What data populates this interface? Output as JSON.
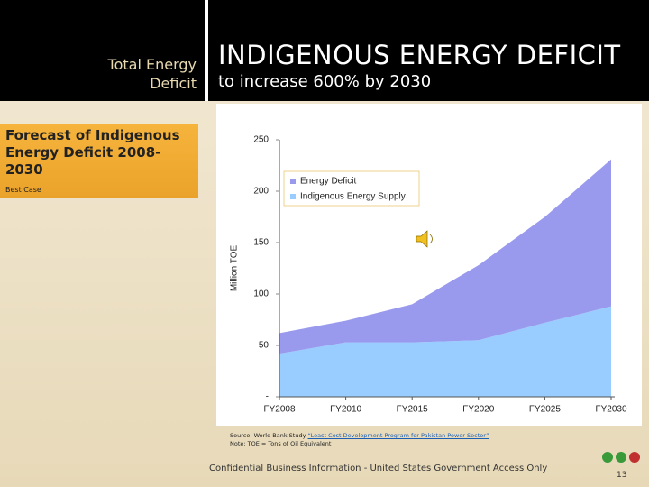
{
  "slide": {
    "header_left": [
      "Total Energy",
      "Deficit"
    ],
    "title": "INDIGENOUS ENERGY DEFICIT",
    "subtitle": "to increase 600% by 2030",
    "callout": {
      "title": "Forecast of Indigenous Energy Deficit 2008-2030",
      "subtitle": "Best Case"
    },
    "source": {
      "text": "Source: World Bank Study ",
      "link": "“Least Cost Development Program for Pakistan Power Sector”",
      "note": "Note: TOE = Tons of Oil Equivalent"
    },
    "footer": "Confidential Business Information - United States Government Access Only",
    "page": "13"
  },
  "chart_data": {
    "type": "stacked_area",
    "y_label": "Million TOE",
    "categories": [
      "FY2008",
      "FY2010",
      "FY2015",
      "FY2020",
      "FY2025",
      "FY2030"
    ],
    "series": [
      {
        "name": "Energy Deficit",
        "color": "#9999ee",
        "values": [
          20,
          21,
          37,
          73,
          103,
          143
        ]
      },
      {
        "name": "Indigenous Energy Supply",
        "color": "#99ccff",
        "values": [
          42,
          53,
          53,
          55,
          72,
          88
        ]
      }
    ],
    "ylim": [
      0,
      250
    ],
    "yticks": [
      {
        "value": 0,
        "label": "-"
      },
      50,
      100,
      150,
      200,
      250
    ]
  }
}
